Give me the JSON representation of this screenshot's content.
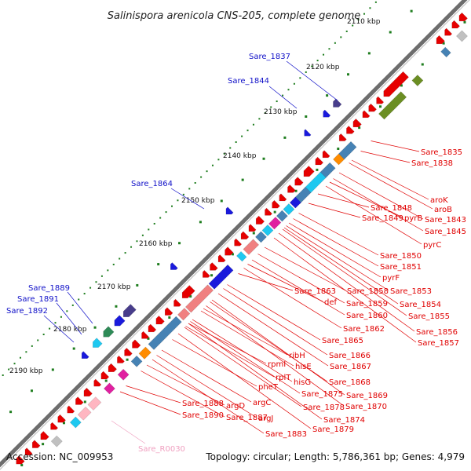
{
  "title": "Salinispora arenicola CNS-205, complete genome",
  "footer": {
    "accession": "Accession: NC_009953",
    "summary": "Topology: circular; Length: 5,786,361 bp; Genes: 4,979"
  },
  "scale": {
    "unit": "kbp",
    "ticks": [
      "2110 kbp",
      "2120 kbp",
      "2130 kbp",
      "2140 kbp",
      "2150 kbp",
      "2160 kbp",
      "2170 kbp",
      "2180 kbp",
      "2190 kbp"
    ]
  },
  "colors": {
    "backbone": "#888888",
    "plus_strand_label": "#1010c8",
    "minus_strand_label": "#e00000",
    "rna_label": "#f0a0c0",
    "tick": "#1e7d1e",
    "feature_red": "#e60000",
    "feature_blue": "#1a1adc",
    "feature_steel": "#4682b4",
    "feature_cyan": "#1ec8f0",
    "feature_olive": "#6b8e23",
    "feature_salmon": "#f08080",
    "feature_magenta": "#e020a0"
  },
  "labels_left": [
    "Sare_1837",
    "Sare_1844",
    "Sare_1864",
    "Sare_1889",
    "Sare_1891",
    "Sare_1892"
  ],
  "labels_right": [
    "Sare_1835",
    "Sare_1838",
    "aroK",
    "aroB",
    "Sare_1848",
    "Sare_1843",
    "Sare_1849",
    "pyrB",
    "Sare_1845",
    "pyrC",
    "Sare_1850",
    "Sare_1851",
    "pyrF",
    "Sare_1858",
    "Sare_1853",
    "Sare_1863",
    "def",
    "Sare_1859",
    "Sare_1854",
    "Sare_1860",
    "Sare_1855",
    "Sare_1862",
    "Sare_1856",
    "Sare_1865",
    "Sare_1857",
    "Sare_1866",
    "ribH",
    "hisE",
    "Sare_1867",
    "rpmI",
    "rplT",
    "hisG",
    "Sare_1868",
    "pheT",
    "Sare_1875",
    "Sare_1869",
    "argC",
    "Sare_1878",
    "Sare_1870",
    "Sare_1888",
    "argD",
    "Sare_1890",
    "Sare_1887",
    "argJ",
    "Sare_1874",
    "Sare_1879",
    "Sare_1883"
  ],
  "labels_rna": [
    "Sare_R0030"
  ]
}
